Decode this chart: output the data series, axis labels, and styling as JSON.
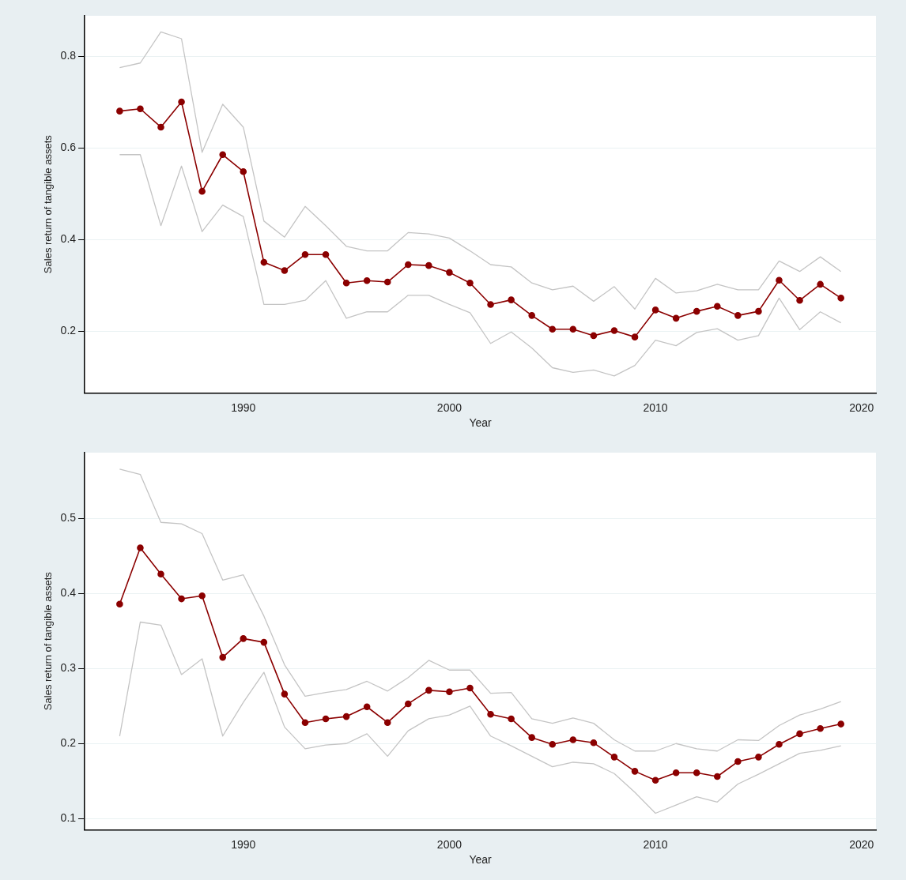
{
  "chart_data": [
    {
      "type": "line",
      "xlabel": "Year",
      "ylabel": "Sales return of tangible assets",
      "x": [
        1984,
        1985,
        1986,
        1987,
        1988,
        1989,
        1990,
        1991,
        1992,
        1993,
        1994,
        1995,
        1996,
        1997,
        1998,
        1999,
        2000,
        2001,
        2002,
        2003,
        2004,
        2005,
        2006,
        2007,
        2008,
        2009,
        2010,
        2011,
        2012,
        2013,
        2014,
        2015,
        2016,
        2017,
        2018,
        2019
      ],
      "series": [
        {
          "color": "#c4c4c4",
          "marker": "none",
          "values": [
            0.775,
            0.785,
            0.853,
            0.838,
            0.59,
            0.695,
            0.645,
            0.44,
            0.405,
            0.472,
            0.43,
            0.385,
            0.375,
            0.375,
            0.415,
            0.412,
            0.403,
            0.375,
            0.345,
            0.34,
            0.305,
            0.29,
            0.298,
            0.265,
            0.297,
            0.248,
            0.315,
            0.283,
            0.288,
            0.302,
            0.29,
            0.29,
            0.353,
            0.33,
            0.362,
            0.33
          ]
        },
        {
          "color": "#c4c4c4",
          "marker": "none",
          "values": [
            0.585,
            0.585,
            0.43,
            0.56,
            0.417,
            0.475,
            0.45,
            0.258,
            0.258,
            0.267,
            0.31,
            0.228,
            0.242,
            0.242,
            0.278,
            0.278,
            0.258,
            0.24,
            0.173,
            0.198,
            0.163,
            0.12,
            0.11,
            0.115,
            0.102,
            0.125,
            0.18,
            0.168,
            0.197,
            0.205,
            0.18,
            0.19,
            0.272,
            0.203,
            0.242,
            0.218
          ]
        },
        {
          "color": "#8b0000",
          "values": [
            0.68,
            0.685,
            0.645,
            0.7,
            0.505,
            0.585,
            0.548,
            0.35,
            0.332,
            0.367,
            0.367,
            0.305,
            0.31,
            0.307,
            0.345,
            0.343,
            0.328,
            0.305,
            0.258,
            0.268,
            0.234,
            0.204,
            0.204,
            0.19,
            0.201,
            0.187,
            0.246,
            0.228,
            0.243,
            0.254,
            0.234,
            0.243,
            0.311,
            0.267,
            0.302,
            0.272
          ]
        }
      ],
      "xlim": [
        1982.3,
        2020.7
      ],
      "xticks": [
        1990,
        2000,
        2010,
        2020
      ],
      "ylim": [
        0.065,
        0.888
      ],
      "yticks": [
        0.2,
        0.4,
        0.6,
        0.8
      ],
      "grid": "y",
      "marker": "circle",
      "line_style": "solid",
      "legend": false
    },
    {
      "type": "line",
      "xlabel": "Year",
      "ylabel": "Sales return of tangible assets",
      "x": [
        1984,
        1985,
        1986,
        1987,
        1988,
        1989,
        1990,
        1991,
        1992,
        1993,
        1994,
        1995,
        1996,
        1997,
        1998,
        1999,
        2000,
        2001,
        2002,
        2003,
        2004,
        2005,
        2006,
        2007,
        2008,
        2009,
        2010,
        2011,
        2012,
        2013,
        2014,
        2015,
        2016,
        2017,
        2018,
        2019
      ],
      "series": [
        {
          "color": "#c4c4c4",
          "marker": "none",
          "values": [
            0.566,
            0.559,
            0.495,
            0.493,
            0.48,
            0.418,
            0.425,
            0.37,
            0.305,
            0.263,
            0.268,
            0.272,
            0.283,
            0.27,
            0.288,
            0.311,
            0.298,
            0.298,
            0.267,
            0.268,
            0.233,
            0.227,
            0.234,
            0.227,
            0.205,
            0.19,
            0.19,
            0.2,
            0.193,
            0.19,
            0.205,
            0.204,
            0.224,
            0.238,
            0.246,
            0.256
          ]
        },
        {
          "color": "#c4c4c4",
          "marker": "none",
          "values": [
            0.21,
            0.362,
            0.358,
            0.292,
            0.313,
            0.21,
            0.255,
            0.295,
            0.222,
            0.193,
            0.198,
            0.2,
            0.213,
            0.183,
            0.217,
            0.233,
            0.238,
            0.25,
            0.21,
            0.197,
            0.183,
            0.169,
            0.175,
            0.173,
            0.16,
            0.135,
            0.107,
            0.118,
            0.129,
            0.122,
            0.146,
            0.159,
            0.173,
            0.187,
            0.191,
            0.197
          ]
        },
        {
          "color": "#8b0000",
          "values": [
            0.386,
            0.461,
            0.426,
            0.393,
            0.397,
            0.315,
            0.34,
            0.335,
            0.266,
            0.228,
            0.233,
            0.236,
            0.249,
            0.228,
            0.253,
            0.271,
            0.269,
            0.274,
            0.239,
            0.233,
            0.208,
            0.199,
            0.205,
            0.201,
            0.182,
            0.163,
            0.151,
            0.161,
            0.161,
            0.156,
            0.176,
            0.182,
            0.199,
            0.213,
            0.22,
            0.226
          ]
        }
      ],
      "xlim": [
        1982.3,
        2020.7
      ],
      "xticks": [
        1990,
        2000,
        2010,
        2020
      ],
      "ylim": [
        0.085,
        0.588
      ],
      "yticks": [
        0.1,
        0.2,
        0.3,
        0.4,
        0.5
      ],
      "grid": "y",
      "marker": "circle",
      "line_style": "solid",
      "legend": false
    }
  ]
}
